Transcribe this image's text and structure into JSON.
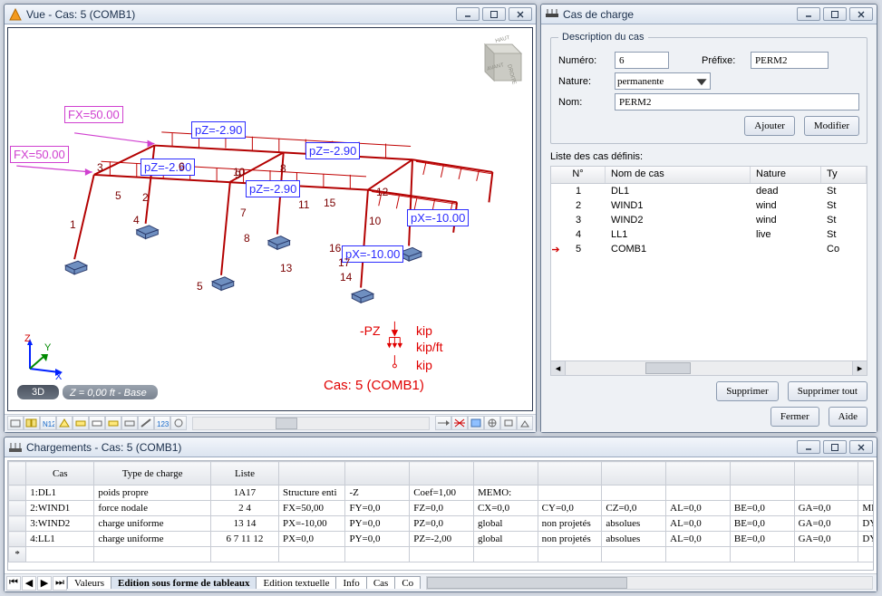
{
  "vue": {
    "title": "Vue - Cas: 5 (COMB1)",
    "labels": {
      "fx1": "FX=50.00",
      "fx2": "FX=50.00",
      "pz1": "pZ=-2.90",
      "pz2": "pZ=-2.90",
      "pz3": "pZ=-2.90",
      "pz4": "pZ=-2.90",
      "px1": "pX=-10.00",
      "px2": "pX=-10.00"
    },
    "members": [
      "1",
      "2",
      "3",
      "4",
      "5",
      "6",
      "7",
      "8",
      "9",
      "10",
      "11",
      "12",
      "13",
      "14",
      "15",
      "16",
      "17"
    ],
    "legend": {
      "pz": "-PZ",
      "kip": "kip",
      "kipft": "kip/ft",
      "kip2": "kip",
      "cas": "Cas: 5 (COMB1)"
    },
    "status3d": "3D",
    "status": "Z = 0,00 ft - Base",
    "cube_faces": [
      "HAUT",
      "DROITE",
      "AVANT"
    ],
    "toolcount": 11,
    "toolcount_right": 6
  },
  "cas": {
    "title": "Cas de charge",
    "desc_legend": "Description du cas",
    "numero_lbl": "Numéro:",
    "numero_val": "6",
    "prefixe_lbl": "Préfixe:",
    "prefixe_val": "PERM2",
    "nature_lbl": "Nature:",
    "nature_val": "permanente",
    "nom_lbl": "Nom:",
    "nom_val": "PERM2",
    "ajouter": "Ajouter",
    "modifier": "Modifier",
    "liste_lbl": "Liste des cas définis:",
    "hdr_no": "N°",
    "hdr_nom": "Nom de cas",
    "hdr_nat": "Nature",
    "hdr_ty": "Ty",
    "rows": [
      {
        "no": "1",
        "nom": "DL1",
        "nat": "dead",
        "ty": "St"
      },
      {
        "no": "2",
        "nom": "WIND1",
        "nat": "wind",
        "ty": "St"
      },
      {
        "no": "3",
        "nom": "WIND2",
        "nat": "wind",
        "ty": "St"
      },
      {
        "no": "4",
        "nom": "LL1",
        "nat": "live",
        "ty": "St"
      },
      {
        "no": "5",
        "nom": "COMB1",
        "nat": "",
        "ty": "Co"
      }
    ],
    "supprimer": "Supprimer",
    "supprimer_tout": "Supprimer tout",
    "fermer": "Fermer",
    "aide": "Aide"
  },
  "chg": {
    "title": "Chargements - Cas: 5 (COMB1)",
    "cols": [
      "",
      "Cas",
      "Type de charge",
      "Liste",
      "",
      "",
      "",
      "",
      "",
      "",
      "",
      "",
      "",
      "",
      ""
    ],
    "rows": [
      [
        "",
        "1:DL1",
        "poids propre",
        "1A17",
        "Structure enti",
        "-Z",
        "Coef=1,00",
        "MEMO:",
        "",
        "",
        "",
        "",
        "",
        "",
        ""
      ],
      [
        "",
        "2:WIND1",
        "force nodale",
        "2 4",
        "FX=50,00",
        "FY=0,0",
        "FZ=0,0",
        "CX=0,0",
        "CY=0,0",
        "CZ=0,0",
        "AL=0,0",
        "BE=0,0",
        "GA=0,0",
        "ME",
        ""
      ],
      [
        "",
        "3:WIND2",
        "charge uniforme",
        "13 14",
        "PX=-10,00",
        "PY=0,0",
        "PZ=0,0",
        "global",
        "non projetés",
        "absolues",
        "AL=0,0",
        "BE=0,0",
        "GA=0,0",
        "DY",
        ""
      ],
      [
        "",
        "4:LL1",
        "charge uniforme",
        "6 7 11 12",
        "PX=0,0",
        "PY=0,0",
        "PZ=-2,00",
        "global",
        "non projetés",
        "absolues",
        "AL=0,0",
        "BE=0,0",
        "GA=0,0",
        "DY",
        ""
      ],
      [
        "*",
        "",
        "",
        "",
        "",
        "",
        "",
        "",
        "",
        "",
        "",
        "",
        "",
        "",
        ""
      ]
    ],
    "tabs": [
      "Valeurs",
      "Edition sous forme de tableaux",
      "Edition textuelle",
      "Info",
      "Cas",
      "Co"
    ],
    "active_tab": 1
  }
}
